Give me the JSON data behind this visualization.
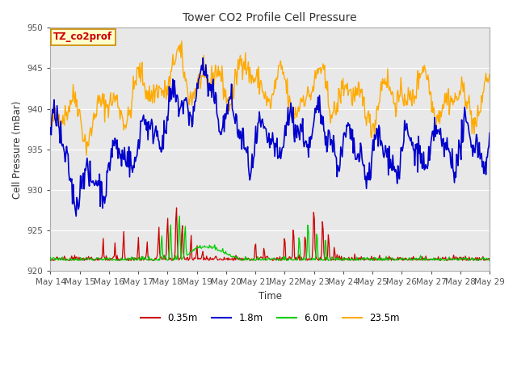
{
  "title": "Tower CO2 Profile Cell Pressure",
  "xlabel": "Time",
  "ylabel": "Cell Pressure (mBar)",
  "ylim": [
    920,
    950
  ],
  "yticks": [
    920,
    925,
    930,
    935,
    940,
    945,
    950
  ],
  "colors": {
    "0.35m": "#cc0000",
    "1.8m": "#0000cc",
    "6.0m": "#00cc00",
    "23.5m": "#ffaa00"
  },
  "legend_label": "TZ_co2prof",
  "fig_bg": "#ffffff",
  "plot_bg": "#e8e8e8",
  "grid_color": "#ffffff",
  "spine_color": "#aaaaaa"
}
